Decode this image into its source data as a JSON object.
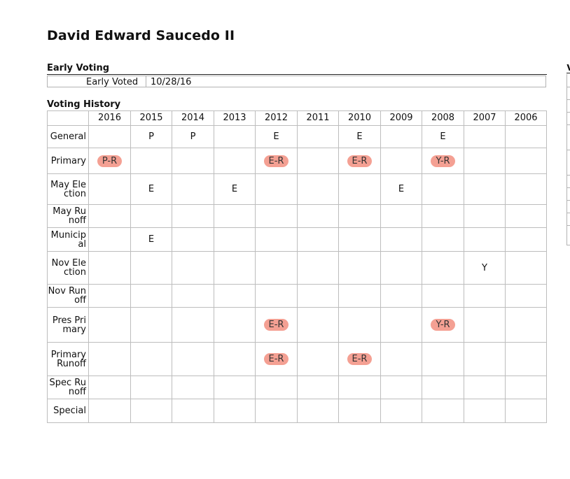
{
  "name": "David Edward Saucedo II",
  "early_voting": {
    "heading": "Early Voting",
    "label": "Early Voted",
    "value": "10/28/16"
  },
  "voting_history": {
    "heading": "Voting History",
    "years": [
      "2016",
      "2015",
      "2014",
      "2013",
      "2012",
      "2011",
      "2010",
      "2009",
      "2008",
      "2007",
      "2006"
    ],
    "rows": [
      {
        "label": "General",
        "cells": [
          "",
          "P",
          "P",
          "",
          "E",
          "",
          "E",
          "",
          "E",
          "",
          ""
        ]
      },
      {
        "label": "Primary",
        "cells": [
          "P-R",
          "",
          "",
          "",
          "E-R",
          "",
          "E-R",
          "",
          "Y-R",
          "",
          ""
        ]
      },
      {
        "label": "May Election",
        "cells": [
          "",
          "E",
          "",
          "E",
          "",
          "",
          "",
          "E",
          "",
          "",
          ""
        ]
      },
      {
        "label": "May Runoff",
        "cells": [
          "",
          "",
          "",
          "",
          "",
          "",
          "",
          "",
          "",
          "",
          ""
        ]
      },
      {
        "label": "Municipal",
        "cells": [
          "",
          "E",
          "",
          "",
          "",
          "",
          "",
          "",
          "",
          "",
          ""
        ]
      },
      {
        "label": "Nov Election",
        "cells": [
          "",
          "",
          "",
          "",
          "",
          "",
          "",
          "",
          "",
          "Y",
          ""
        ]
      },
      {
        "label": "Nov Runoff",
        "cells": [
          "",
          "",
          "",
          "",
          "",
          "",
          "",
          "",
          "",
          "",
          ""
        ]
      },
      {
        "label": "Pres Primary",
        "cells": [
          "",
          "",
          "",
          "",
          "E-R",
          "",
          "",
          "",
          "Y-R",
          "",
          ""
        ]
      },
      {
        "label": "Primary Runoff",
        "cells": [
          "",
          "",
          "",
          "",
          "E-R",
          "",
          "E-R",
          "",
          "",
          "",
          ""
        ]
      },
      {
        "label": "Spec Runoff",
        "cells": [
          "",
          "",
          "",
          "",
          "",
          "",
          "",
          "",
          "",
          "",
          ""
        ]
      },
      {
        "label": "Special",
        "cells": [
          "",
          "",
          "",
          "",
          "",
          "",
          "",
          "",
          "",
          "",
          ""
        ]
      }
    ]
  },
  "highlight_color": "#f4a093",
  "side_fragment_text": "V"
}
